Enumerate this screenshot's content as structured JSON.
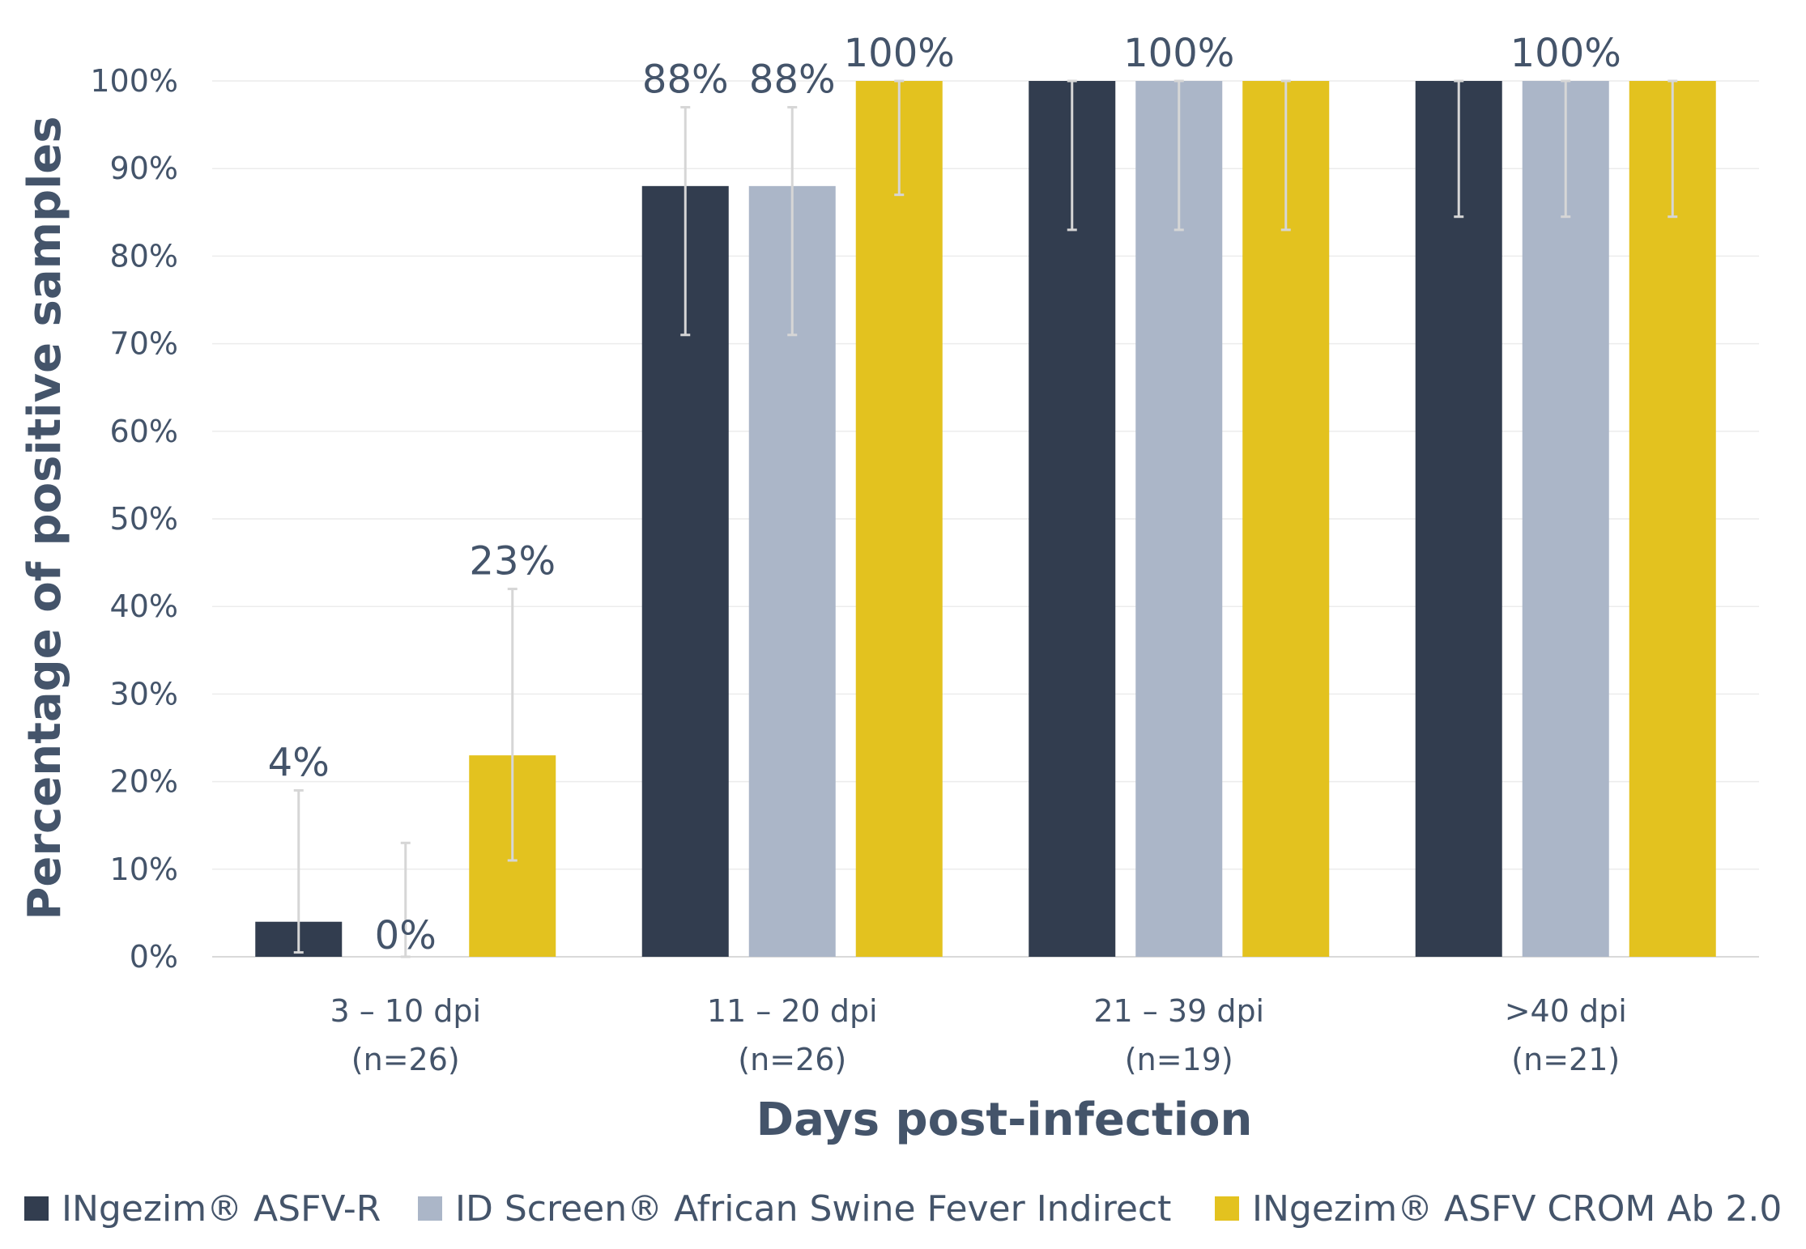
{
  "chart_data": {
    "type": "bar",
    "title": "",
    "xlabel": "Days post-infection",
    "ylabel": "Percentage of positive samples",
    "ylim": [
      0,
      100
    ],
    "yticks": [
      "0%",
      "10%",
      "20%",
      "30%",
      "40%",
      "50%",
      "60%",
      "70%",
      "80%",
      "90%",
      "100%"
    ],
    "categories": [
      {
        "label": "3 – 10 dpi",
        "n": "(n=26)"
      },
      {
        "label": "11 – 20 dpi",
        "n": "(n=26)"
      },
      {
        "label": "21 – 39 dpi",
        "n": "(n=19)"
      },
      {
        "label": ">40 dpi",
        "n": "(n=21)"
      }
    ],
    "series": [
      {
        "name": "INgezim® ASFV-R",
        "color": "#323d4f",
        "values": [
          4,
          88,
          100,
          100
        ],
        "err_low": [
          0.5,
          71,
          83,
          84.5
        ],
        "err_high": [
          19,
          97,
          100,
          100
        ]
      },
      {
        "name": "ID Screen® African Swine Fever Indirect",
        "color": "#abb6c8",
        "values": [
          0,
          88,
          100,
          100
        ],
        "err_low": [
          0,
          71,
          83,
          84.5
        ],
        "err_high": [
          13,
          97,
          100,
          100
        ]
      },
      {
        "name": "INgezim® ASFV CROM Ab 2.0",
        "color": "#e3c21f",
        "values": [
          23,
          100,
          100,
          100
        ],
        "err_low": [
          11,
          87,
          83,
          84.5
        ],
        "err_high": [
          42,
          100,
          100,
          100
        ]
      }
    ],
    "data_labels": [
      [
        "4%",
        "0%",
        "23%"
      ],
      [
        "88%",
        "88%",
        "100%"
      ],
      [
        "",
        "100%",
        ""
      ],
      [
        "",
        "100%",
        ""
      ]
    ],
    "grid": true,
    "legend_position": "bottom"
  }
}
